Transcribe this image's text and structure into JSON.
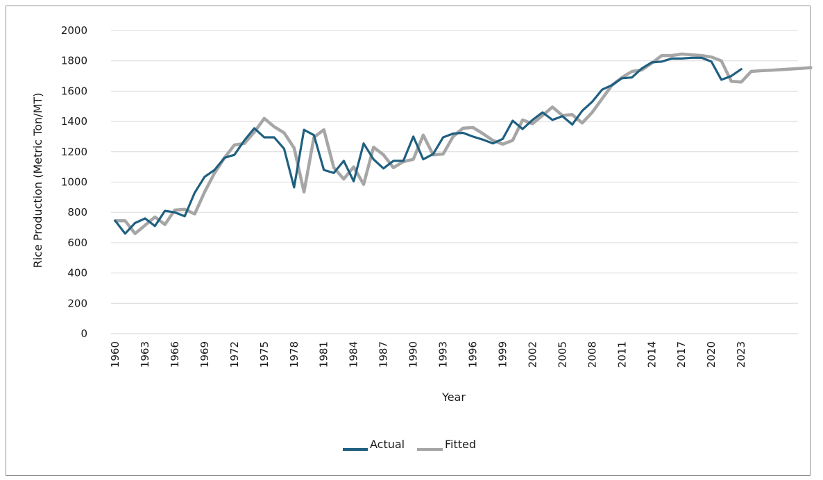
{
  "chart_data": {
    "type": "line",
    "title": "",
    "xlabel": "Year",
    "ylabel": "Rice Production (Metric Ton/MT)",
    "ylim": [
      0,
      2000
    ],
    "yticks": [
      "0",
      "200",
      "400",
      "600",
      "800",
      "1000",
      "1200",
      "1400",
      "1600",
      "1800",
      "2000"
    ],
    "xticks": [
      "1960",
      "1963",
      "1966",
      "1969",
      "1972",
      "1975",
      "1978",
      "1981",
      "1984",
      "1987",
      "1990",
      "1993",
      "1996",
      "1999",
      "2002",
      "2005",
      "2008",
      "2011",
      "2014",
      "2017",
      "2020",
      "2023"
    ],
    "grid": "horizontal",
    "legend_position": "bottom",
    "series": [
      {
        "name": "Actual",
        "color": "#1f5f80",
        "x": [
          1960,
          1961,
          1962,
          1963,
          1964,
          1965,
          1966,
          1967,
          1968,
          1969,
          1970,
          1971,
          1972,
          1973,
          1974,
          1975,
          1976,
          1977,
          1978,
          1979,
          1980,
          1981,
          1982,
          1983,
          1984,
          1985,
          1986,
          1987,
          1988,
          1989,
          1990,
          1991,
          1992,
          1993,
          1994,
          1995,
          1996,
          1997,
          1998,
          1999,
          2000,
          2001,
          2002,
          2003,
          2004,
          2005,
          2006,
          2007,
          2008,
          2009,
          2010,
          2011,
          2012,
          2013,
          2014,
          2015,
          2016,
          2017,
          2018,
          2019,
          2020,
          2021,
          2022,
          2023
        ],
        "values": [
          745,
          660,
          730,
          760,
          710,
          810,
          800,
          775,
          930,
          1035,
          1080,
          1160,
          1180,
          1275,
          1355,
          1295,
          1295,
          1220,
          965,
          1345,
          1310,
          1080,
          1060,
          1140,
          1005,
          1255,
          1150,
          1090,
          1140,
          1140,
          1300,
          1150,
          1185,
          1295,
          1320,
          1325,
          1300,
          1280,
          1255,
          1285,
          1405,
          1350,
          1410,
          1460,
          1410,
          1435,
          1380,
          1470,
          1530,
          1610,
          1640,
          1685,
          1690,
          1750,
          1790,
          1795,
          1815,
          1815,
          1820,
          1820,
          1795,
          1675,
          1700,
          1745
        ]
      },
      {
        "name": "Fitted",
        "color": "#a6a6a6",
        "x": [
          1960,
          1961,
          1962,
          1963,
          1964,
          1965,
          1966,
          1967,
          1968,
          1969,
          1970,
          1971,
          1972,
          1973,
          1974,
          1975,
          1976,
          1977,
          1978,
          1979,
          1980,
          1981,
          1982,
          1983,
          1984,
          1985,
          1986,
          1987,
          1988,
          1989,
          1990,
          1991,
          1992,
          1993,
          1994,
          1995,
          1996,
          1997,
          1998,
          1999,
          2000,
          2001,
          2002,
          2003,
          2004,
          2005,
          2006,
          2007,
          2008,
          2009,
          2010,
          2011,
          2012,
          2013,
          2014,
          2015,
          2016,
          2017,
          2018,
          2019,
          2020,
          2021,
          2022,
          2023,
          2024,
          2025,
          2026,
          2027,
          2028,
          2029,
          2030
        ],
        "values": [
          745,
          745,
          660,
          715,
          770,
          720,
          815,
          820,
          790,
          935,
          1060,
          1160,
          1245,
          1255,
          1330,
          1420,
          1365,
          1325,
          1225,
          935,
          1295,
          1345,
          1095,
          1020,
          1100,
          985,
          1230,
          1180,
          1095,
          1135,
          1150,
          1310,
          1180,
          1185,
          1300,
          1355,
          1360,
          1320,
          1275,
          1250,
          1275,
          1410,
          1385,
          1440,
          1495,
          1440,
          1445,
          1390,
          1460,
          1550,
          1640,
          1690,
          1730,
          1740,
          1785,
          1835,
          1835,
          1845,
          1840,
          1835,
          1825,
          1800,
          1665,
          1660,
          1730,
          1735,
          1738,
          1742,
          1746,
          1750,
          1755
        ]
      }
    ]
  }
}
